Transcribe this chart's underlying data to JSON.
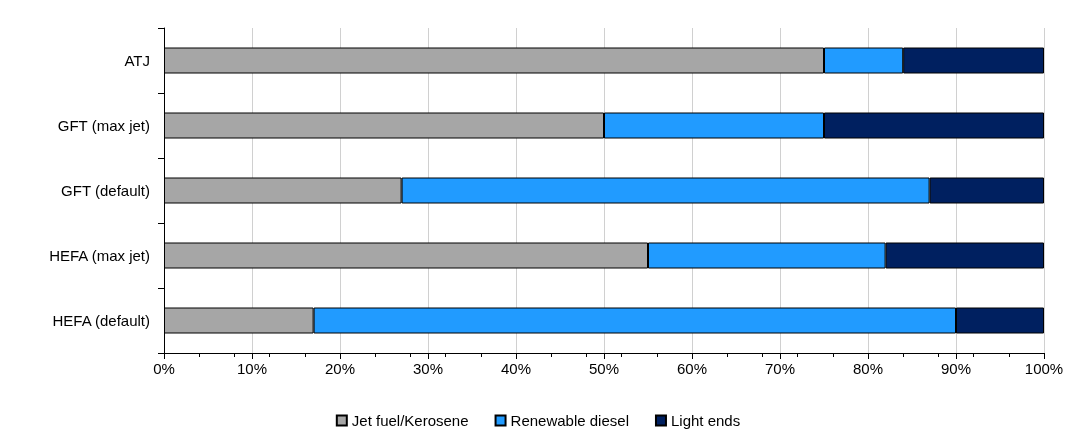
{
  "chart_data": {
    "type": "bar",
    "orientation": "horizontal",
    "stacked": true,
    "categories": [
      "ATJ",
      "GFT (max jet)",
      "GFT (default)",
      "HEFA (max jet)",
      "HEFA (default)"
    ],
    "series": [
      {
        "name": "Jet fuel/Kerosene",
        "color": "#a6a6a6",
        "values": [
          75,
          50,
          27,
          55,
          17
        ]
      },
      {
        "name": "Renewable diesel",
        "color": "#219bff",
        "values": [
          9,
          25,
          60,
          27,
          73
        ]
      },
      {
        "name": "Light ends",
        "color": "#002060",
        "values": [
          16,
          25,
          13,
          18,
          10
        ]
      }
    ],
    "xlim": [
      0,
      100
    ],
    "xticks": [
      {
        "value": 0,
        "label": "0%"
      },
      {
        "value": 10,
        "label": "10%"
      },
      {
        "value": 20,
        "label": "20%"
      },
      {
        "value": 30,
        "label": "30%"
      },
      {
        "value": 40,
        "label": "40%"
      },
      {
        "value": 50,
        "label": "50%"
      },
      {
        "value": 60,
        "label": "60%"
      },
      {
        "value": 70,
        "label": "70%"
      },
      {
        "value": 80,
        "label": "80%"
      },
      {
        "value": 90,
        "label": "90%"
      },
      {
        "value": 100,
        "label": "100%"
      }
    ],
    "grid": "x",
    "legend": "bottom"
  }
}
